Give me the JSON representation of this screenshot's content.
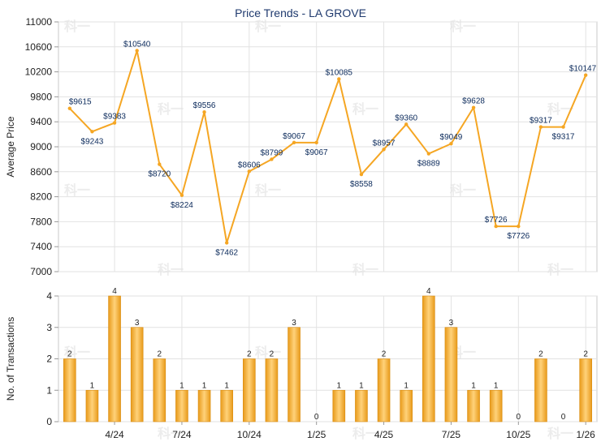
{
  "chart_data": [
    {
      "type": "line",
      "title": "Price Trends - LA GROVE",
      "ylabel": "Average Price",
      "ylim": [
        7000,
        11000
      ],
      "yticks": [
        "7000",
        "7400",
        "7800",
        "8200",
        "8600",
        "9000",
        "9400",
        "9800",
        "10200",
        "10600",
        "11000"
      ],
      "values": [
        9615,
        9243,
        9383,
        10540,
        8720,
        8224,
        9556,
        7462,
        8606,
        8799,
        9067,
        9067,
        10085,
        8558,
        8957,
        9360,
        8889,
        9049,
        9628,
        7726,
        7726,
        9317,
        9317,
        10147
      ],
      "point_labels": [
        "$9615",
        "$9243",
        "$9383",
        "$10540",
        "$8720",
        "$8224",
        "$9556",
        "$7462",
        "$8606",
        "$8799",
        "$9067",
        "$9067",
        "$10085",
        "$8558",
        "$8957",
        "$9360",
        "$8889",
        "$9049",
        "$9628",
        "$7726",
        "$7726",
        "$9317",
        "$9317",
        "$10147"
      ],
      "line_color": "#f5a623"
    },
    {
      "type": "bar",
      "ylabel": "No. of Transactions",
      "ylim": [
        0,
        4
      ],
      "yticks": [
        "0",
        "1",
        "2",
        "3",
        "4"
      ],
      "values": [
        2,
        1,
        4,
        3,
        2,
        1,
        1,
        1,
        2,
        2,
        3,
        0,
        1,
        1,
        2,
        1,
        4,
        3,
        1,
        1,
        0,
        2,
        0,
        2
      ],
      "value_labels": [
        "2",
        "1",
        "4",
        "3",
        "2",
        "1",
        "1",
        "1",
        "2",
        "2",
        "3",
        "0",
        "1",
        "1",
        "2",
        "1",
        "4",
        "3",
        "1",
        "1",
        "0",
        "2",
        "0",
        "2"
      ],
      "x_tick_labels": [
        "4/24",
        "7/24",
        "10/24",
        "1/25",
        "4/25",
        "7/25",
        "10/25",
        "1/26"
      ],
      "bar_color": "#f5b133"
    }
  ],
  "watermark": "科一"
}
